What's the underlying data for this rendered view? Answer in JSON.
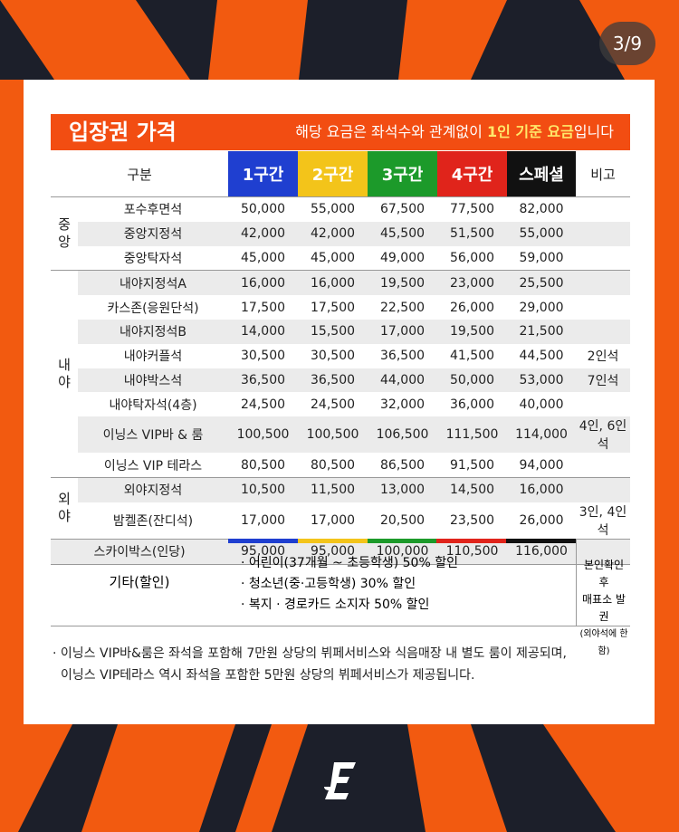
{
  "page_counter": "3/9",
  "banner": {
    "title": "입장권 가격",
    "note_before": "해당 요금은 좌석수와 관계없이 ",
    "note_highlight": "1인 기준 요금",
    "note_after": "입니다"
  },
  "table": {
    "headers": [
      "구분",
      "1구간",
      "2구간",
      "3구간",
      "4구간",
      "스페셜",
      "비고"
    ],
    "groups": [
      {
        "label": "중\n앙",
        "rows": [
          {
            "name": "포수후면석",
            "prices": [
              "50,000",
              "55,000",
              "67,500",
              "77,500",
              "82,000"
            ],
            "note": ""
          },
          {
            "name": "중앙지정석",
            "prices": [
              "42,000",
              "42,000",
              "45,500",
              "51,500",
              "55,000"
            ],
            "note": ""
          },
          {
            "name": "중앙탁자석",
            "prices": [
              "45,000",
              "45,000",
              "49,000",
              "56,000",
              "59,000"
            ],
            "note": ""
          }
        ]
      },
      {
        "label": "내\n야",
        "rows": [
          {
            "name": "내야지정석A",
            "prices": [
              "16,000",
              "16,000",
              "19,500",
              "23,000",
              "25,500"
            ],
            "note": ""
          },
          {
            "name": "카스존(응원단석)",
            "prices": [
              "17,500",
              "17,500",
              "22,500",
              "26,000",
              "29,000"
            ],
            "note": ""
          },
          {
            "name": "내야지정석B",
            "prices": [
              "14,000",
              "15,500",
              "17,000",
              "19,500",
              "21,500"
            ],
            "note": ""
          },
          {
            "name": "내야커플석",
            "prices": [
              "30,500",
              "30,500",
              "36,500",
              "41,500",
              "44,500"
            ],
            "note": "2인석"
          },
          {
            "name": "내야박스석",
            "prices": [
              "36,500",
              "36,500",
              "44,000",
              "50,000",
              "53,000"
            ],
            "note": "7인석"
          },
          {
            "name": "내야탁자석(4층)",
            "prices": [
              "24,500",
              "24,500",
              "32,000",
              "36,000",
              "40,000"
            ],
            "note": ""
          },
          {
            "name": "이닝스 VIP바 & 룸",
            "prices": [
              "100,500",
              "100,500",
              "106,500",
              "111,500",
              "114,000"
            ],
            "note": "4인, 6인석"
          },
          {
            "name": "이닝스 VIP 테라스",
            "prices": [
              "80,500",
              "80,500",
              "86,500",
              "91,500",
              "94,000"
            ],
            "note": ""
          }
        ]
      },
      {
        "label": "외\n야",
        "rows": [
          {
            "name": "외야지정석",
            "prices": [
              "10,500",
              "11,500",
              "13,000",
              "14,500",
              "16,000"
            ],
            "note": ""
          },
          {
            "name": "밤켈존(잔디석)",
            "prices": [
              "17,000",
              "17,000",
              "20,500",
              "23,500",
              "26,000"
            ],
            "note": "3인, 4인석"
          }
        ]
      }
    ],
    "skybox": {
      "name": "스카이박스(인당)",
      "prices": [
        "95,000",
        "95,000",
        "100,000",
        "110,500",
        "116,000"
      ],
      "note": ""
    }
  },
  "etc": {
    "label": "기타(할인)",
    "items": [
      "· 어린이(37개월 ~ 초등학생) 50% 할인",
      "· 청소년(중·고등학생) 30% 할인",
      "· 복지 · 경로카드 소지자 50% 할인"
    ],
    "note_line1": "본인확인 후",
    "note_line2": "매표소 발권",
    "note_line3": "(외야석에 한함)"
  },
  "footnote": {
    "line1": "· 이닝스 VIP바&룸은 좌석을 포함해 7만원 상당의 뷔페서비스와 식음매장 내 별도 룸이 제공되며,",
    "line2": "이닝스 VIP테라스 역시 좌석을 포함한 5만원 상당의 뷔페서비스가 제공됩니다."
  },
  "colors": {
    "zone1": "#1f3fd0",
    "zone2": "#f3c41a",
    "zone3": "#1c9a2a",
    "zone4": "#e0241b",
    "special": "#111111",
    "accent": "#f24d12",
    "background": "#1c1f2a"
  },
  "logo_icon": "eagles-e-logo-icon"
}
